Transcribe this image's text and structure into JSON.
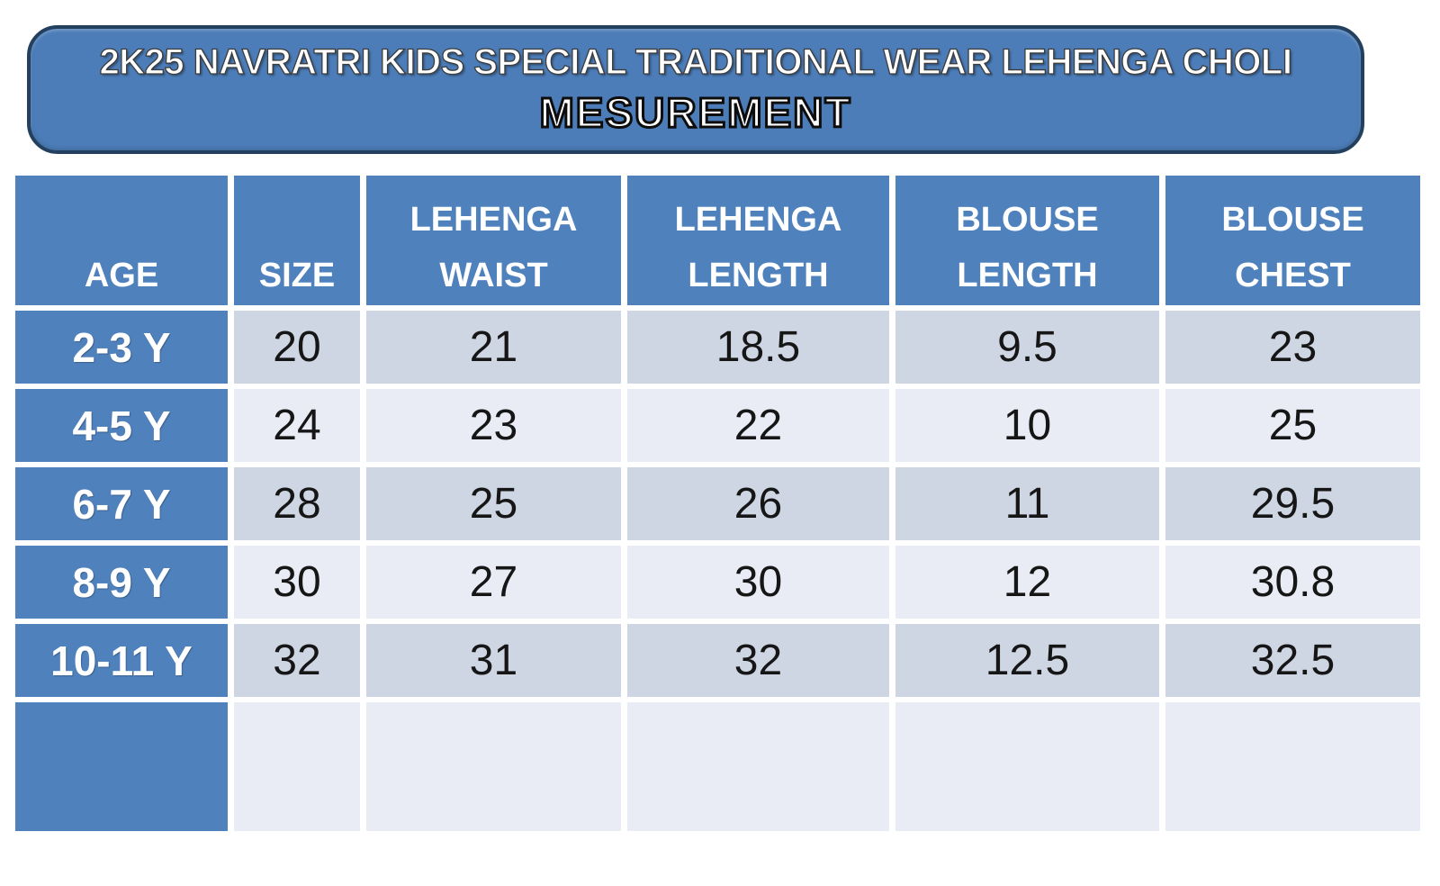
{
  "banner": {
    "title": "2K25 NAVRATRI KIDS SPECIAL TRADITIONAL WEAR LEHENGA CHOLI",
    "subtitle": "MESUREMENT"
  },
  "colors": {
    "accent_blue": "#4f81bd",
    "banner_fill": "#4c7db8",
    "banner_border": "#23415f",
    "row_stripe_dark": "#cfd6e3",
    "row_stripe_light": "#e9ecf4",
    "header_text": "#ffffff",
    "value_text": "#161616"
  },
  "table": {
    "headers": [
      [
        "AGE"
      ],
      [
        "SIZE"
      ],
      [
        "LEHENGA",
        "WAIST"
      ],
      [
        "LEHENGA",
        "LENGTH"
      ],
      [
        "BLOUSE",
        "LENGTH"
      ],
      [
        "BLOUSE",
        "CHEST"
      ]
    ],
    "rows": [
      {
        "age": "2-3 Y",
        "values": [
          "20",
          "21",
          "18.5",
          "9.5",
          "23"
        ]
      },
      {
        "age": "4-5 Y",
        "values": [
          "24",
          "23",
          "22",
          "10",
          "25"
        ]
      },
      {
        "age": "6-7 Y",
        "values": [
          "28",
          "25",
          "26",
          "11",
          "29.5"
        ]
      },
      {
        "age": "8-9 Y",
        "values": [
          "30",
          "27",
          "30",
          "12",
          "30.8"
        ]
      },
      {
        "age": "10-11 Y",
        "values": [
          "32",
          "31",
          "32",
          "12.5",
          "32.5"
        ]
      }
    ],
    "empty_row": {
      "age": "",
      "values": [
        "",
        "",
        "",
        "",
        ""
      ]
    }
  },
  "chart_data": {
    "type": "table",
    "title": "2K25 NAVRATRI KIDS SPECIAL TRADITIONAL WEAR LEHENGA CHOLI MESUREMENT",
    "columns": [
      "AGE",
      "SIZE",
      "LEHENGA WAIST",
      "LEHENGA LENGTH",
      "BLOUSE LENGTH",
      "BLOUSE CHEST"
    ],
    "rows": [
      [
        "2-3 Y",
        20,
        21,
        18.5,
        9.5,
        23
      ],
      [
        "4-5 Y",
        24,
        23,
        22,
        10,
        25
      ],
      [
        "6-7 Y",
        28,
        25,
        26,
        11,
        29.5
      ],
      [
        "8-9 Y",
        30,
        27,
        30,
        12,
        30.8
      ],
      [
        "10-11 Y",
        32,
        31,
        32,
        12.5,
        32.5
      ]
    ]
  }
}
